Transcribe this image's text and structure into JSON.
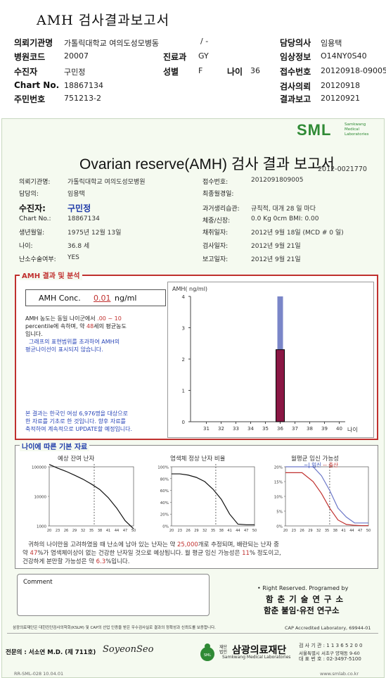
{
  "header": {
    "title": "AMH 검사결과보고서",
    "rows": [
      {
        "l1": "의뢰기관명",
        "v1": "가톨릭대학교 여의도성모병동",
        "l2": "/ -",
        "v2": "",
        "l3": "",
        "v3": "",
        "l4": "담당의사",
        "v4": "임용택"
      },
      {
        "l1": "병원코드",
        "v1": "20007",
        "l2": "진료과",
        "v2": "GY",
        "l3": "",
        "v3": "",
        "l4": "임상정보",
        "v4": "O14NY0S40"
      },
      {
        "l1": "수진자",
        "v1": "구민정",
        "l2": "성별",
        "v2": "F",
        "l3": "나이",
        "v3": "36",
        "l4": "접수번호",
        "v4": "20120918-09005"
      },
      {
        "l1": "Chart No.",
        "v1": "18867134",
        "l2": "",
        "v2": "",
        "l3": "",
        "v3": "",
        "l4": "검사의뢰",
        "v4": "20120918"
      },
      {
        "l1": "주민번호",
        "v1": "751213-2",
        "l2": "",
        "v2": "",
        "l3": "",
        "v3": "",
        "l4": "결과보고",
        "v4": "20120921"
      }
    ]
  },
  "report": {
    "logo": "SML",
    "logo_sub": "Samkwang Medical Laboratories",
    "title": "Ovarian reserve(AMH) 검사 결과 보고서",
    "report_no": "2012-0021770",
    "left_info": [
      {
        "label": "의뢰기관명:",
        "value": "가톨릭대학교 여의도성모병원"
      },
      {
        "label": "담당의:",
        "value": "임용택"
      },
      {
        "label": "수진자:",
        "value": "구민정"
      },
      {
        "label": "Chart No.:",
        "value": "18867134"
      },
      {
        "label": "생년월일:",
        "value": "1975년 12월 13일"
      },
      {
        "label": "나이:",
        "value": "36.8 세"
      },
      {
        "label": "난소수술여부:",
        "value": "YES"
      }
    ],
    "right_info": [
      {
        "label": "접수번호:",
        "value": "2012091809005"
      },
      {
        "label": "최종월경일:",
        "value": ""
      },
      {
        "label": "과거생리습관:",
        "value": "규칙적, 대개    28 일 마다"
      },
      {
        "label": "체중/신장:",
        "value": "0.0 Kg       0cm    BMI:     0.00"
      },
      {
        "label": "채취일자:",
        "value": "2012년 9월 18일   (MCD #  0 일)"
      },
      {
        "label": "검사일자:",
        "value": "2012년 9월 21일"
      },
      {
        "label": "보고일자:",
        "value": "2012년 9월 21일"
      }
    ],
    "amh_section": {
      "tag": "AMH 결과 및 분석",
      "conc_label": "AMH Conc.",
      "conc_value": "0.01",
      "conc_unit": "ng/ml",
      "p1a": "AMH 농도는 동일 나이군에서",
      "p1b": ".00 ~  10",
      "p1c": "percentile에 속하며, 약",
      "p1d": "48",
      "p1e": "세의 평균농도",
      "p1f": "입니다.",
      "p2": "그래프의 표현범위를 초과하여 AMH의",
      "p3": "평균나이선이 표시되지 않습니다.",
      "p4": "본 결과는 한국인 여성 6,976명을 대상으로",
      "p5": "한 자료를 기초로 한 것입니다. 향후 자료를",
      "p6": "축적하여 계속적으로 UPDATE할 예정입니다."
    },
    "age_section": {
      "tag": "나이에 따른 기본 자료",
      "chart1_title": "예상 잔여 난자",
      "chart2_title": "염색체 정상 난자 비율",
      "chart3_title": "월평균 임신 가능성",
      "legend_a": "~| 임신",
      "legend_b": "-- 출산",
      "s1a": "귀하의 나이만을 고려하였을 때 난소에 남아 있는 난자는 약",
      "s1b": "25,000",
      "s1c": "개로 추정되며, 배란되는 난자 중",
      "s2a": "약",
      "s2b": "47",
      "s2c": "%가 염색체이상이 없는 건강한 난자일 것으로 예상됩니다. 월 평균 임신 가능성은",
      "s2d": "11",
      "s2e": "% 정도이고,",
      "s3a": "건강하게 분만할 가능성은 약",
      "s3b": "6.3",
      "s3c": "%입니다."
    },
    "comment_label": "Comment",
    "rights": "• Right Reserved. Programed by",
    "prog1": "함 춘 기 술 연 구 소",
    "prog2": "함춘 불임·유전 연구소",
    "footnote": "삼광의료재단은 대한진단검사의학회(KSLM) 및 CAP의 산업 인증을 받은 우수검사실로 결과의 정확성과 신뢰도를 보증합니다.",
    "cap": "CAP Accredited Laboratory, 69944-01",
    "signer": "전문의 : 서소연 M.D. (제 711호)",
    "signature": "SoyeonSeo",
    "foundation_small": "재단법인",
    "foundation": "삼광의료재단",
    "foundation_en": "Samkwang Medical Laboratories",
    "addr1": "검 사 기 관 : 1 1 3 6 5 2 0 0",
    "addr2": "서울특별시 서초구 양재동 9-60",
    "addr3": "대 표 번 호 : 02-3497-5100",
    "bottom_code": "RR-SML-028 10.04.01",
    "bottom_url": "www.smlab.co.kr"
  },
  "chart_data": [
    {
      "type": "bar",
      "title": "AMH( ng/ml)",
      "xlabel": "나이",
      "x_ticks": [
        "31",
        "32",
        "33",
        "34",
        "35",
        "36",
        "37",
        "38",
        "39",
        "40"
      ],
      "y_ticks": [
        "0",
        "1",
        "2",
        "3",
        "4"
      ],
      "ylim": [
        0,
        4
      ],
      "patient_bar": {
        "age": "36",
        "value": 2.3,
        "range_max": 4.0
      }
    },
    {
      "type": "line",
      "title": "예상 잔여 난자",
      "y_ticks": [
        "100000",
        "10000",
        "1000"
      ],
      "x_ticks": [
        "20",
        "23",
        "26",
        "29",
        "32",
        "35",
        "38",
        "41",
        "44",
        "47",
        "50"
      ],
      "marker_age": 36,
      "x": [
        20,
        23,
        26,
        29,
        32,
        35,
        38,
        41,
        44,
        47,
        50
      ],
      "y": [
        120000,
        90000,
        70000,
        52000,
        38000,
        26000,
        17000,
        9000,
        4000,
        1500,
        800
      ]
    },
    {
      "type": "line",
      "title": "염색체 정상 난자 비율",
      "y_ticks": [
        "100%",
        "80%",
        "60%",
        "40%",
        "20%",
        "0%"
      ],
      "x_ticks": [
        "20",
        "23",
        "26",
        "29",
        "32",
        "35",
        "38",
        "41",
        "44",
        "47",
        "50"
      ],
      "marker_age": 36,
      "x": [
        20,
        23,
        26,
        29,
        32,
        35,
        38,
        41,
        44,
        47,
        50
      ],
      "y": [
        88,
        88,
        86,
        82,
        75,
        62,
        45,
        20,
        3,
        2,
        2
      ]
    },
    {
      "type": "line",
      "title": "월평균 임신 가능성",
      "y_ticks": [
        "20%",
        "15%",
        "10%",
        "5%",
        "0%"
      ],
      "x_ticks": [
        "20",
        "23",
        "26",
        "29",
        "32",
        "35",
        "38",
        "41",
        "44",
        "47",
        "50"
      ],
      "marker_age": 36,
      "series": [
        {
          "name": "임신",
          "x": [
            20,
            26,
            30,
            33,
            36,
            39,
            42,
            45,
            48,
            50
          ],
          "y": [
            22,
            22,
            20,
            17,
            12,
            6,
            3,
            1,
            1,
            1
          ]
        },
        {
          "name": "출산",
          "x": [
            20,
            26,
            30,
            33,
            36,
            39,
            42,
            45,
            48,
            50
          ],
          "y": [
            18,
            18,
            15,
            11,
            6,
            2,
            0.5,
            0.2,
            0.1,
            0.1
          ]
        }
      ]
    }
  ]
}
